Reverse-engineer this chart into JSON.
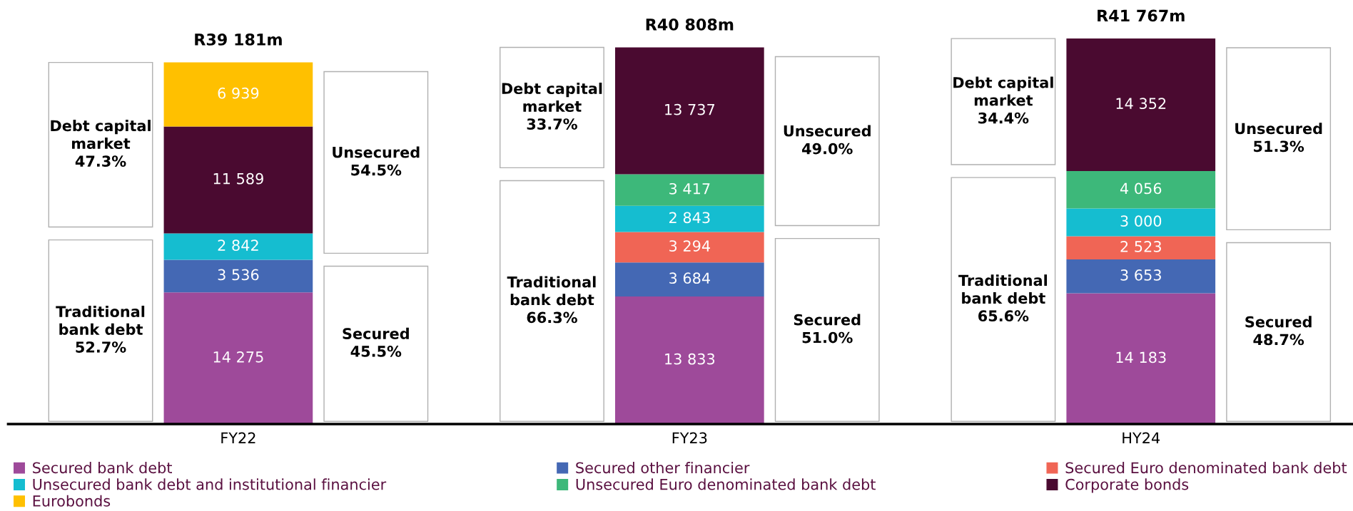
{
  "chart_data": {
    "type": "bar",
    "stacked": true,
    "categories": [
      "FY22",
      "FY23",
      "HY24"
    ],
    "series": [
      {
        "name": "Secured bank debt",
        "color": "#9e4a9a",
        "values": [
          14275,
          13833,
          14183
        ]
      },
      {
        "name": "Secured other financier",
        "color": "#4468b4",
        "values": [
          3536,
          3684,
          3653
        ]
      },
      {
        "name": "Secured Euro denominated bank debt",
        "color": "#f06555",
        "values": [
          null,
          3294,
          2523
        ]
      },
      {
        "name": "Unsecured bank debt and institutional financier",
        "color": "#15bdd0",
        "values": [
          2842,
          2843,
          3000
        ]
      },
      {
        "name": "Unsecured Euro denominated bank debt",
        "color": "#3db87a",
        "values": [
          null,
          3417,
          4056
        ]
      },
      {
        "name": "Corporate bonds",
        "color": "#4a0a30",
        "values": [
          11589,
          13737,
          14352
        ]
      },
      {
        "name": "Eurobonds",
        "color": "#ffc000",
        "values": [
          6939,
          null,
          null
        ]
      }
    ],
    "totals": [
      "R39 181m",
      "R40 808m",
      "R41 767m"
    ],
    "annotations": [
      "Debt capital\nmarket\n47.3%",
      "Traditional\nbank debt\n52.7%",
      "Unsecured\n54.5%",
      "Secured\n45.5%",
      "Debt capital\nmarket\n33.7%",
      "Traditional\nbank debt\n66.3%",
      "Unsecured\n49.0%",
      "Secured\n51.0%",
      "Debt capital\nmarket\n34.4%",
      "Traditional\nbank debt\n65.6%",
      "Unsecured\n51.3%",
      "Secured\n48.7%"
    ],
    "tick_labels": "x",
    "data_labels": true,
    "legend": "bottom",
    "grid": false
  }
}
